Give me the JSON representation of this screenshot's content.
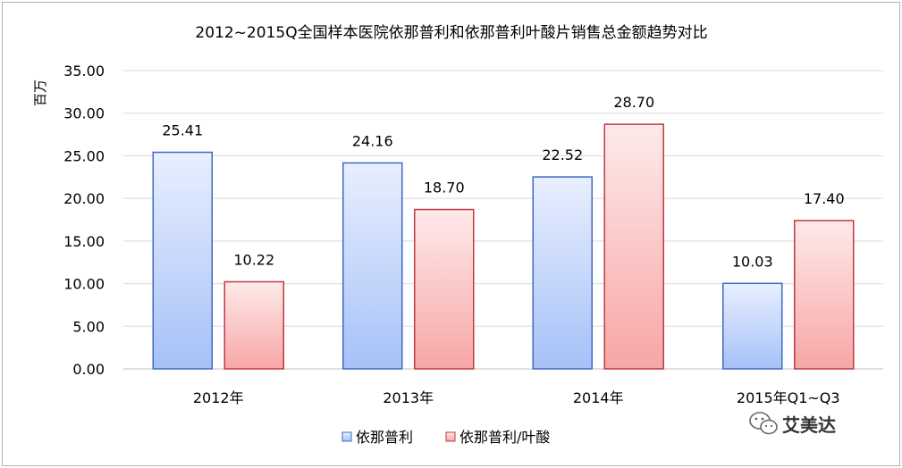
{
  "watermark": {
    "text": "艾美达",
    "icon": "wechat-icon"
  },
  "chart_data": {
    "type": "bar",
    "title": "2012~2015Q全国样本医院依那普利和依那普利叶酸片销售总金额趋势对比",
    "xlabel": "",
    "ylabel": "百万",
    "ylim": [
      0,
      35
    ],
    "yticks": [
      "0.00",
      "5.00",
      "10.00",
      "15.00",
      "20.00",
      "25.00",
      "30.00",
      "35.00"
    ],
    "grid": true,
    "legend_position": "bottom",
    "categories": [
      "2012年",
      "2013年",
      "2014年",
      "2015年Q1~Q3"
    ],
    "series": [
      {
        "name": "依那普利",
        "values": [
          25.41,
          24.16,
          22.52,
          10.03
        ],
        "labels": [
          "25.41",
          "24.16",
          "22.52",
          "10.03"
        ],
        "color_top": "#e8efff",
        "color_bottom": "#a6c1f7",
        "border": "#3f69c2"
      },
      {
        "name": "依那普利/叶酸",
        "values": [
          10.22,
          18.7,
          28.7,
          17.4
        ],
        "labels": [
          "10.22",
          "18.70",
          "28.70",
          "17.40"
        ],
        "color_top": "#ffeaea",
        "color_bottom": "#f7a6a6",
        "border": "#c0393f"
      }
    ]
  }
}
